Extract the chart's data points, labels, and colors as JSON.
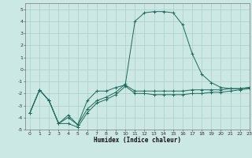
{
  "xlabel": "Humidex (Indice chaleur)",
  "bg_color": "#cce8e4",
  "grid_color": "#aacfca",
  "line_color": "#1a6b5a",
  "xlim": [
    -0.5,
    23
  ],
  "ylim": [
    -5,
    5.5
  ],
  "xticks": [
    0,
    1,
    2,
    3,
    4,
    5,
    6,
    7,
    8,
    9,
    10,
    11,
    12,
    13,
    14,
    15,
    16,
    17,
    18,
    19,
    20,
    21,
    22,
    23
  ],
  "yticks": [
    -5,
    -4,
    -3,
    -2,
    -1,
    0,
    1,
    2,
    3,
    4,
    5
  ],
  "series": {
    "line1_x": [
      0,
      1,
      2,
      3,
      4,
      5,
      6,
      7,
      8,
      9,
      10,
      11,
      12,
      13,
      14,
      15,
      16,
      17,
      18,
      19,
      20,
      21,
      22,
      23
    ],
    "line1_y": [
      -3.6,
      -1.7,
      -2.6,
      -4.5,
      -3.8,
      -4.6,
      -2.6,
      -1.8,
      -1.8,
      -1.5,
      -1.3,
      -1.8,
      -1.8,
      -1.8,
      -1.8,
      -1.8,
      -1.8,
      -1.7,
      -1.7,
      -1.7,
      -1.7,
      -1.6,
      -1.6,
      -1.5
    ],
    "line2_x": [
      0,
      1,
      2,
      3,
      4,
      5,
      6,
      7,
      8,
      9,
      10,
      11,
      12,
      13,
      14,
      15,
      16,
      17,
      18,
      19,
      20,
      21,
      22,
      23
    ],
    "line2_y": [
      -3.6,
      -1.7,
      -2.6,
      -4.5,
      -4.0,
      -4.6,
      -3.3,
      -2.6,
      -2.3,
      -1.9,
      -1.2,
      4.0,
      4.7,
      4.8,
      4.8,
      4.7,
      3.7,
      1.3,
      -0.4,
      -1.1,
      -1.5,
      -1.6,
      -1.6,
      -1.5
    ],
    "line3_x": [
      0,
      1,
      2,
      3,
      4,
      5,
      6,
      7,
      8,
      9,
      10,
      11,
      12,
      13,
      14,
      15,
      16,
      17,
      18,
      19,
      20,
      21,
      22,
      23
    ],
    "line3_y": [
      -3.6,
      -1.7,
      -2.6,
      -4.5,
      -4.5,
      -4.8,
      -3.6,
      -2.8,
      -2.5,
      -2.1,
      -1.4,
      -2.0,
      -2.0,
      -2.1,
      -2.1,
      -2.1,
      -2.1,
      -2.0,
      -2.0,
      -1.9,
      -1.9,
      -1.8,
      -1.7,
      -1.6
    ]
  }
}
